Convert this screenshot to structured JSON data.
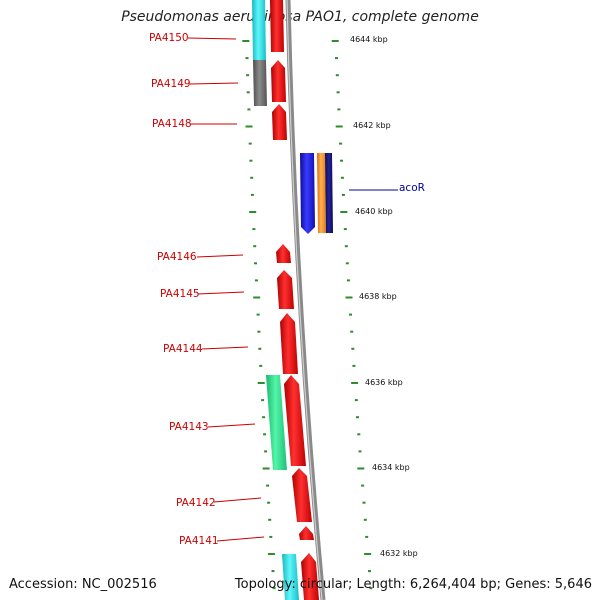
{
  "title": "Pseudomonas aeruginosa PAO1, complete genome",
  "accession": "Accession: NC_002516",
  "summary": "Topology: circular; Length: 6,264,404 bp; Genes: 5,646",
  "colors": {
    "backbone": "#8a8a8a",
    "tick": "#2e8b2e",
    "gene_red": "#ee1111",
    "gene_cyan": "#22e5ee",
    "gene_gray": "#6e6e6e",
    "gene_green": "#22dd88",
    "gene_blue": "#1a1add",
    "gene_orange": "#ff9922",
    "gene_navy": "#141478",
    "label_red": "#cc0000",
    "label_blue": "#000099"
  },
  "scale_labels": [
    "4644 kbp",
    "4642 kbp",
    "4640 kbp",
    "4638 kbp",
    "4636 kbp",
    "4634 kbp",
    "4632 kbp"
  ],
  "gene_labels": [
    "PA4150",
    "PA4149",
    "PA4148",
    "acoR",
    "PA4146",
    "PA4145",
    "PA4144",
    "PA4143",
    "PA4142",
    "PA4141"
  ]
}
